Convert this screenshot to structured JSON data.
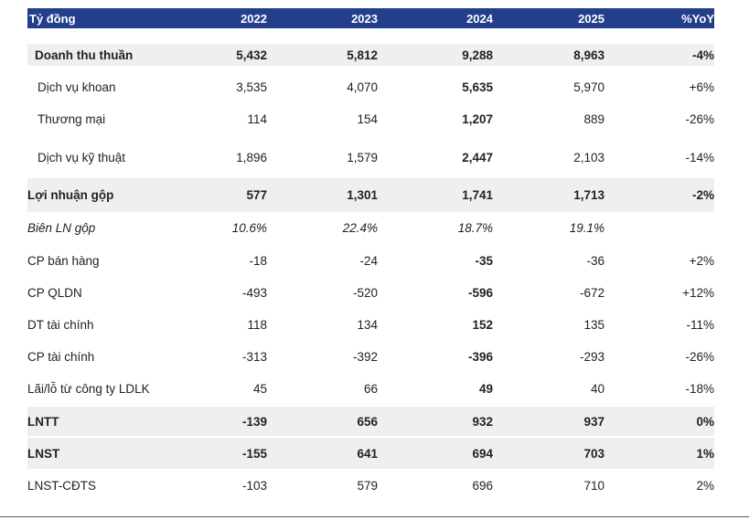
{
  "header": {
    "label": "Tỷ đồng",
    "years": [
      "2022",
      "2023",
      "2024",
      "2025"
    ],
    "yoy": "%YoY"
  },
  "rows": [
    {
      "label": "Doanh thu thuần",
      "v0": "5,432",
      "v1": "5,812",
      "v2": "9,288",
      "v3": "8,963",
      "yoy": "-4%"
    },
    {
      "label": "Dịch vụ khoan",
      "v0": "3,535",
      "v1": "4,070",
      "v2": "5,635",
      "v3": "5,970",
      "yoy": "+6%"
    },
    {
      "label": "Thương mại",
      "v0": "114",
      "v1": "154",
      "v2": "1,207",
      "v3": "889",
      "yoy": "-26%"
    },
    {
      "label": "Dịch vụ kỹ thuật",
      "v0": "1,896",
      "v1": "1,579",
      "v2": "2,447",
      "v3": "2,103",
      "yoy": "-14%"
    },
    {
      "label": "Lợi nhuận gộp",
      "v0": "577",
      "v1": "1,301",
      "v2": "1,741",
      "v3": "1,713",
      "yoy": "-2%"
    },
    {
      "label": "Biên LN gộp",
      "v0": "10.6%",
      "v1": "22.4%",
      "v2": "18.7%",
      "v3": "19.1%",
      "yoy": ""
    },
    {
      "label": "CP bán hàng",
      "v0": "-18",
      "v1": "-24",
      "v2": "-35",
      "v3": "-36",
      "yoy": "+2%"
    },
    {
      "label": "CP QLDN",
      "v0": "-493",
      "v1": "-520",
      "v2": "-596",
      "v3": "-672",
      "yoy": "+12%"
    },
    {
      "label": "DT tài chính",
      "v0": "118",
      "v1": "134",
      "v2": "152",
      "v3": "135",
      "yoy": "-11%"
    },
    {
      "label": "CP tài chính",
      "v0": "-313",
      "v1": "-392",
      "v2": "-396",
      "v3": "-293",
      "yoy": "-26%"
    },
    {
      "label": "Lãi/lỗ từ công ty LDLK",
      "v0": "45",
      "v1": "66",
      "v2": "49",
      "v3": "40",
      "yoy": "-18%"
    },
    {
      "label": "LNTT",
      "v0": "-139",
      "v1": "656",
      "v2": "932",
      "v3": "937",
      "yoy": "0%"
    },
    {
      "label": "LNST",
      "v0": "-155",
      "v1": "641",
      "v2": "694",
      "v3": "703",
      "yoy": "1%"
    },
    {
      "label": "LNST-CĐTS",
      "v0": "-103",
      "v1": "579",
      "v2": "696",
      "v3": "710",
      "yoy": "2%"
    }
  ]
}
